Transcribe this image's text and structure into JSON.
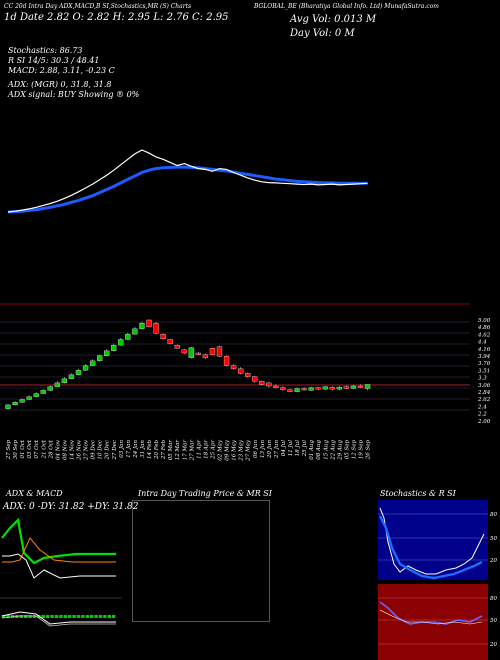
{
  "header": {
    "top_left": "CC 20d Intra Day ADX,MACD,B     SI,Stochastics,MR     (S) Charts",
    "right_title": "BGLOBAL_BE     (Bharatiya Global Info. Ltd) MunafaSutra.com",
    "price_line": "1d  Date 2.82  O: 2.82  H: 2.95  L: 2.76  C: 2.95",
    "avg_vol": "Avg Vol: 0.013 M",
    "day_vol": "Day Vol: 0   M"
  },
  "indicators": {
    "stochastics": "Stochastics: 86.73",
    "stoch_rsi": "R              SI 14/5: 30.3 / 48.41",
    "macd": "MACD: 2.88, 3.11, -0.23 C",
    "adx": "ADX:                           (MGR) 0,  31.8,  31.8",
    "adx_signal": "ADX  signal:                                  BUY Showing ® 0%"
  },
  "panels": {
    "adx_title": "ADX  & MACD",
    "adx_values": "ADX: 0   -DY: 31.82  +DY: 31.82",
    "intra_title": "Intra  Day Trading Price  & MR                SI",
    "stoch_title": "Stochastics & R                    SI",
    "stoch_ticks": [
      "80",
      "50",
      "20"
    ],
    "rsi_ticks": [
      "80",
      "50",
      "20"
    ]
  },
  "colors": {
    "candle_up": "#00cc00",
    "candle_down": "#ff0000",
    "ema_long": "#1a5cff",
    "ema_short": "#ffffff",
    "band": "#8b0000",
    "stoch_bg": "#00008b"
  },
  "chart_data": {
    "type": "candlestick",
    "price_axis": [
      "5.00",
      "4.86",
      "4.62",
      "4.4",
      "4.16",
      "3.94",
      "3.76",
      "3.51",
      "3.3",
      "3.06",
      "2.84",
      "2.62",
      "2.4",
      "2.2",
      "2.00"
    ],
    "dates": [
      "27 Sep",
      "30 Sep",
      "01 Oct",
      "03 Oct",
      "07 Oct",
      "21 Oct",
      "28 Oct",
      "04 Nov",
      "08 Nov",
      "14 Nov",
      "26 Nov",
      "27 Nov",
      "09 Dec",
      "10 Dec",
      "20 Dec",
      "27 Dec",
      "03 Jan",
      "17 Jan",
      "24 Jan",
      "31 Jan",
      "14 Feb",
      "20 Feb",
      "27 Feb",
      "05 Mar",
      "12 Mar",
      "17 Mar",
      "27 Mar",
      "11 Apr",
      "18 Apr",
      "25 Apr",
      "02 May",
      "09 May",
      "16 May",
      "23 May",
      "27 May",
      "06 Jun",
      "13 Jun",
      "20 Jun",
      "27 Jun",
      "04 Jul",
      "11 Jul",
      "18 Jul",
      "25 Jul",
      "01 Aug",
      "08 Aug",
      "15 Aug",
      "22 Aug",
      "29 Aug",
      "05 Sep",
      "12 Sep",
      "19 Sep",
      "26 Sep"
    ],
    "candles": [
      {
        "o": 2.18,
        "c": 2.3,
        "h": 2.32,
        "l": 2.16
      },
      {
        "o": 2.3,
        "c": 2.38,
        "h": 2.42,
        "l": 2.28
      },
      {
        "o": 2.38,
        "c": 2.47,
        "h": 2.5,
        "l": 2.36
      },
      {
        "o": 2.47,
        "c": 2.56,
        "h": 2.6,
        "l": 2.45
      },
      {
        "o": 2.56,
        "c": 2.66,
        "h": 2.7,
        "l": 2.54
      },
      {
        "o": 2.66,
        "c": 2.76,
        "h": 2.8,
        "l": 2.64
      },
      {
        "o": 2.76,
        "c": 2.88,
        "h": 2.92,
        "l": 2.74
      },
      {
        "o": 2.88,
        "c": 3.0,
        "h": 3.05,
        "l": 2.86
      },
      {
        "o": 3.0,
        "c": 3.13,
        "h": 3.18,
        "l": 2.98
      },
      {
        "o": 3.13,
        "c": 3.26,
        "h": 3.3,
        "l": 3.11
      },
      {
        "o": 3.26,
        "c": 3.4,
        "h": 3.45,
        "l": 3.24
      },
      {
        "o": 3.4,
        "c": 3.55,
        "h": 3.6,
        "l": 3.38
      },
      {
        "o": 3.55,
        "c": 3.7,
        "h": 3.75,
        "l": 3.53
      },
      {
        "o": 3.7,
        "c": 3.86,
        "h": 3.9,
        "l": 3.68
      },
      {
        "o": 3.86,
        "c": 4.02,
        "h": 4.07,
        "l": 3.84
      },
      {
        "o": 4.02,
        "c": 4.2,
        "h": 4.25,
        "l": 4.0
      },
      {
        "o": 4.2,
        "c": 4.38,
        "h": 4.43,
        "l": 4.18
      },
      {
        "o": 4.38,
        "c": 4.55,
        "h": 4.6,
        "l": 4.36
      },
      {
        "o": 4.55,
        "c": 4.72,
        "h": 4.78,
        "l": 4.53
      },
      {
        "o": 4.72,
        "c": 4.9,
        "h": 4.95,
        "l": 4.7
      },
      {
        "o": 5.0,
        "c": 4.78,
        "h": 5.02,
        "l": 4.76
      },
      {
        "o": 4.9,
        "c": 4.58,
        "h": 4.95,
        "l": 4.55
      },
      {
        "o": 4.55,
        "c": 4.4,
        "h": 4.58,
        "l": 4.38
      },
      {
        "o": 4.38,
        "c": 4.25,
        "h": 4.4,
        "l": 4.22
      },
      {
        "o": 4.2,
        "c": 4.1,
        "h": 4.22,
        "l": 4.08
      },
      {
        "o": 4.05,
        "c": 3.95,
        "h": 4.08,
        "l": 3.92
      },
      {
        "o": 3.8,
        "c": 4.12,
        "h": 4.15,
        "l": 3.78
      },
      {
        "o": 3.95,
        "c": 3.9,
        "h": 3.98,
        "l": 3.88
      },
      {
        "o": 3.9,
        "c": 3.8,
        "h": 3.93,
        "l": 3.76
      },
      {
        "o": 4.1,
        "c": 3.9,
        "h": 4.12,
        "l": 3.87
      },
      {
        "o": 4.15,
        "c": 3.85,
        "h": 4.18,
        "l": 3.82
      },
      {
        "o": 3.85,
        "c": 3.55,
        "h": 3.88,
        "l": 3.52
      },
      {
        "o": 3.55,
        "c": 3.45,
        "h": 3.6,
        "l": 3.42
      },
      {
        "o": 3.45,
        "c": 3.3,
        "h": 3.5,
        "l": 3.27
      },
      {
        "o": 3.3,
        "c": 3.2,
        "h": 3.33,
        "l": 3.17
      },
      {
        "o": 3.2,
        "c": 3.05,
        "h": 3.22,
        "l": 3.0
      },
      {
        "o": 3.05,
        "c": 2.95,
        "h": 3.08,
        "l": 2.92
      },
      {
        "o": 3.0,
        "c": 2.9,
        "h": 3.02,
        "l": 2.85
      },
      {
        "o": 2.9,
        "c": 2.85,
        "h": 2.95,
        "l": 2.82
      },
      {
        "o": 2.85,
        "c": 2.78,
        "h": 2.9,
        "l": 2.75
      },
      {
        "o": 2.78,
        "c": 2.72,
        "h": 2.82,
        "l": 2.7
      },
      {
        "o": 2.72,
        "c": 2.82,
        "h": 2.85,
        "l": 2.7
      },
      {
        "o": 2.82,
        "c": 2.78,
        "h": 2.86,
        "l": 2.75
      },
      {
        "o": 2.76,
        "c": 2.85,
        "h": 2.88,
        "l": 2.74
      },
      {
        "o": 2.85,
        "c": 2.8,
        "h": 2.88,
        "l": 2.77
      },
      {
        "o": 2.8,
        "c": 2.88,
        "h": 2.9,
        "l": 2.78
      },
      {
        "o": 2.86,
        "c": 2.8,
        "h": 2.9,
        "l": 2.76
      },
      {
        "o": 2.8,
        "c": 2.86,
        "h": 2.9,
        "l": 2.77
      },
      {
        "o": 2.88,
        "c": 2.82,
        "h": 2.92,
        "l": 2.8
      },
      {
        "o": 2.82,
        "c": 2.9,
        "h": 2.93,
        "l": 2.8
      },
      {
        "o": 2.9,
        "c": 2.86,
        "h": 2.95,
        "l": 2.84
      },
      {
        "o": 2.82,
        "c": 2.95,
        "h": 2.95,
        "l": 2.76
      }
    ],
    "ema_white": [
      2.0,
      2.02,
      2.05,
      2.08,
      2.12,
      2.17,
      2.22,
      2.28,
      2.35,
      2.43,
      2.52,
      2.62,
      2.72,
      2.83,
      2.95,
      3.08,
      3.22,
      3.36,
      3.5,
      3.6,
      3.52,
      3.42,
      3.36,
      3.28,
      3.2,
      3.25,
      3.18,
      3.12,
      3.1,
      3.05,
      3.12,
      3.1,
      3.02,
      2.95,
      2.88,
      2.82,
      2.78,
      2.76,
      2.75,
      2.74,
      2.73,
      2.72,
      2.71,
      2.72,
      2.7,
      2.71,
      2.72,
      2.7,
      2.71,
      2.72,
      2.73,
      2.74
    ],
    "ema_blue": [
      2.0,
      2.01,
      2.02,
      2.04,
      2.06,
      2.09,
      2.12,
      2.16,
      2.2,
      2.25,
      2.3,
      2.36,
      2.42,
      2.5,
      2.58,
      2.66,
      2.75,
      2.84,
      2.93,
      3.02,
      3.08,
      3.12,
      3.14,
      3.15,
      3.16,
      3.16,
      3.15,
      3.14,
      3.12,
      3.1,
      3.08,
      3.06,
      3.03,
      3.0,
      2.97,
      2.94,
      2.91,
      2.88,
      2.85,
      2.83,
      2.81,
      2.79,
      2.78,
      2.77,
      2.76,
      2.75,
      2.75,
      2.74,
      2.74,
      2.74,
      2.74,
      2.74
    ],
    "ylim": [
      2.0,
      5.0
    ]
  }
}
